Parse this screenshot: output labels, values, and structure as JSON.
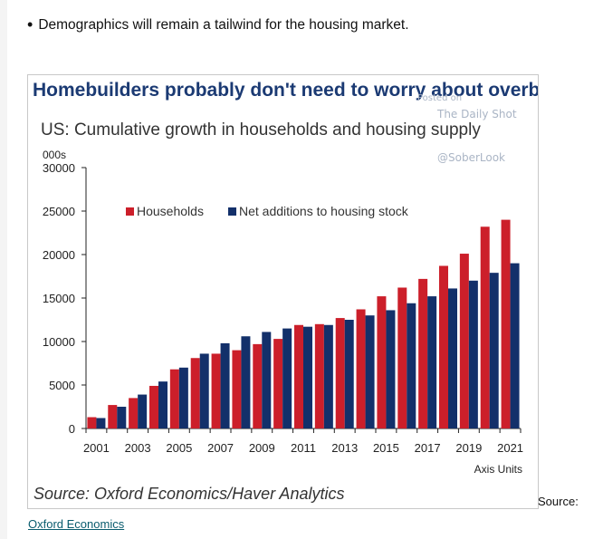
{
  "bullet": "Demographics will remain a tailwind for the housing market.",
  "chart_headline": "Homebuilders probably don't need to worry about overbuilding",
  "watermark": {
    "posted": "Posted on",
    "site": "The Daily Shot",
    "faint": "",
    "handle": "@SoberLook"
  },
  "source_line": "Source: Oxford Economics/Haver Analytics",
  "note_source": "Source:",
  "footer_link": "Oxford Economics",
  "colors": {
    "households": "#cc1f2a",
    "housing": "#13306a",
    "axis": "#222222"
  },
  "chart_data": {
    "type": "bar",
    "title": "US: Cumulative growth in households and housing supply",
    "ylabel": "000s",
    "xlabel": "Axis Units",
    "ylim": [
      0,
      30000
    ],
    "yticks": [
      0,
      5000,
      10000,
      15000,
      20000,
      25000,
      30000
    ],
    "xtick_labels": [
      "2001",
      "2003",
      "2005",
      "2007",
      "2009",
      "2011",
      "2013",
      "2015",
      "2017",
      "2019",
      "2021"
    ],
    "categories": [
      "2001",
      "2002",
      "2003",
      "2004",
      "2005",
      "2006",
      "2007",
      "2008",
      "2009",
      "2010",
      "2011",
      "2012",
      "2013",
      "2014",
      "2015",
      "2016",
      "2017",
      "2018",
      "2019",
      "2020",
      "2021"
    ],
    "legend_position": "top-left",
    "grid": false,
    "series": [
      {
        "name": "Households",
        "values": [
          1300,
          2700,
          3500,
          4900,
          6800,
          8100,
          8600,
          9000,
          9700,
          10300,
          11900,
          12000,
          12700,
          13700,
          15200,
          16200,
          17200,
          18700,
          20100,
          23200,
          24000
        ]
      },
      {
        "name": "Net additions to housing stock",
        "values": [
          1200,
          2500,
          3900,
          5400,
          7000,
          8600,
          9800,
          10600,
          11100,
          11500,
          11700,
          11900,
          12500,
          13000,
          13600,
          14400,
          15200,
          16100,
          17000,
          17900,
          19000
        ]
      }
    ]
  }
}
